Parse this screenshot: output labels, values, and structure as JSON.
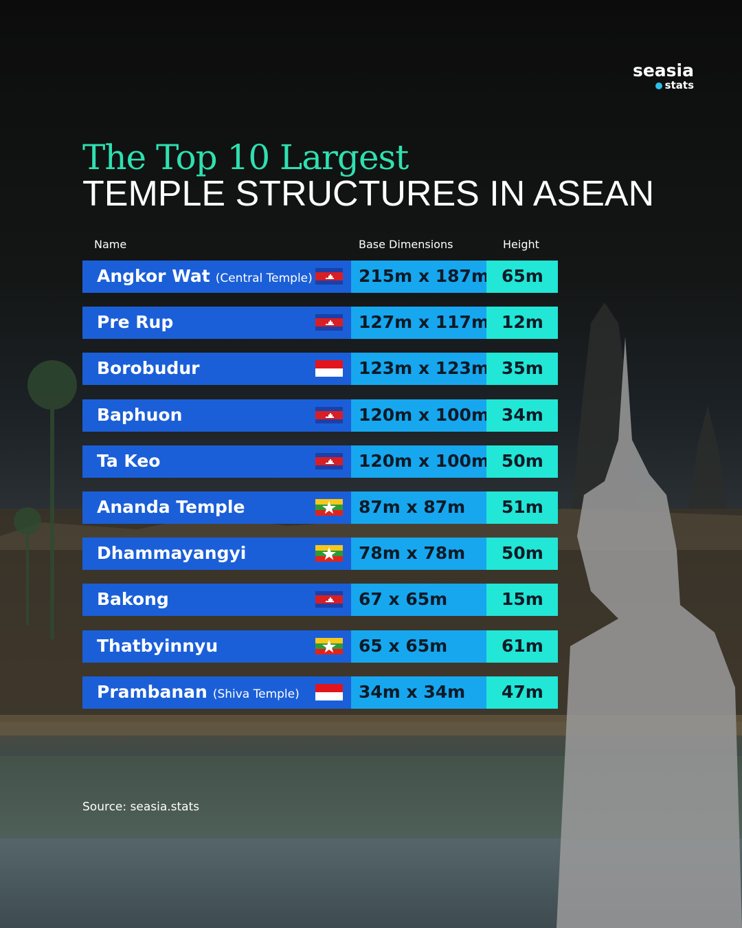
{
  "brand": {
    "name": "seasia",
    "sub": "stats"
  },
  "title": {
    "line1": "The Top 10 Largest",
    "line2": "TEMPLE STRUCTURES IN ASEAN"
  },
  "table": {
    "headers": [
      "Name",
      "Base Dimensions",
      "Height"
    ],
    "rows": [
      {
        "name": "Angkor Wat",
        "note": "(Central Temple)",
        "dimensions": "215m x 187m",
        "height": "65m"
      },
      {
        "name": "Pre Rup",
        "dimensions": "127m x 117m",
        "height": "12m"
      },
      {
        "name": "Borobudur",
        "dimensions": "123m x 123m",
        "height": "35m"
      },
      {
        "name": "Baphuon",
        "dimensions": "120m x 100m",
        "height": "34m"
      },
      {
        "name": "Ta Keo",
        "dimensions": "120m x 100m",
        "height": "50m"
      },
      {
        "name": "Ananda Temple",
        "dimensions": "87m x 87m",
        "height": "51m"
      },
      {
        "name": "Dhammayangyi",
        "dimensions": "78m x 78m",
        "height": "50m"
      },
      {
        "name": "Bakong",
        "dimensions": "67 x 65m",
        "height": "15m"
      },
      {
        "name": "Thatbyinnyu",
        "dimensions": "65 x 65m",
        "height": "61m"
      },
      {
        "name": "Prambanan",
        "note": "(Shiva Temple)",
        "dimensions": "34m x 34m",
        "height": "47m"
      }
    ]
  },
  "source": "Source: seasia.stats"
}
